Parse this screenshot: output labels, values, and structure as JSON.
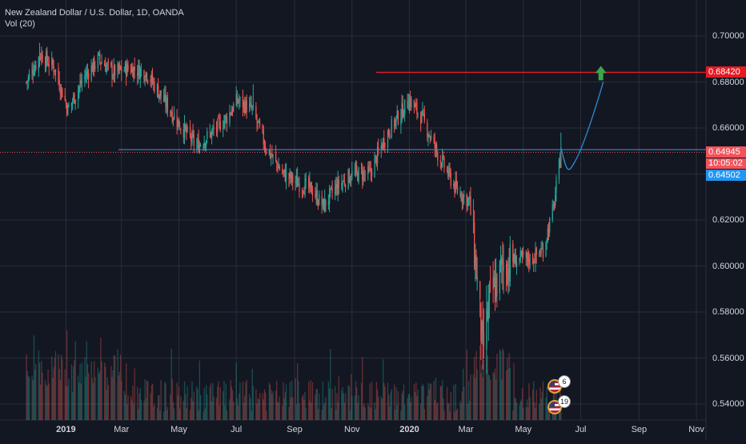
{
  "legend": {
    "symbol_title": "New Zealand Dollar / U.S. Dollar, 1D, OANDA",
    "volume_label": "Vol (20)"
  },
  "colors": {
    "background": "#131722",
    "grid": "#2a2e39",
    "up": "#26a69a",
    "down": "#ef5350",
    "resistance": "#e31b23",
    "support_line": "#4a90d9",
    "projection": "#2d8bd6",
    "arrow": "#3ea44b",
    "current_price": "#f0545b",
    "projection_tag": "#2196f3"
  },
  "y_axis": {
    "ticks": [
      "0.70000",
      "0.68000",
      "0.66000",
      "0.62000",
      "0.60000",
      "0.58000",
      "0.56000",
      "0.54000"
    ]
  },
  "x_axis": {
    "ticks": [
      {
        "label": "2019",
        "bold": true
      },
      {
        "label": "Mar",
        "bold": false
      },
      {
        "label": "May",
        "bold": false
      },
      {
        "label": "Jul",
        "bold": false
      },
      {
        "label": "Sep",
        "bold": false
      },
      {
        "label": "Nov",
        "bold": false
      },
      {
        "label": "2020",
        "bold": true
      },
      {
        "label": "Mar",
        "bold": false
      },
      {
        "label": "May",
        "bold": false
      },
      {
        "label": "Jul",
        "bold": false
      },
      {
        "label": "Sep",
        "bold": false
      },
      {
        "label": "Nov",
        "bold": false
      }
    ]
  },
  "price_tags": {
    "resistance": "0.68420",
    "current": "0.64945",
    "countdown": "10:05:02",
    "projection": "0.64502"
  },
  "events": {
    "count_top": "6",
    "count_bottom": "19"
  },
  "chart_data": {
    "type": "candlestick",
    "title": "New Zealand Dollar / U.S. Dollar, 1D, OANDA",
    "series_name": "NZDUSD",
    "indicator": "Vol (20)",
    "ylim": [
      0.532,
      0.705
    ],
    "y_unit": "price",
    "x_range": [
      "2018-11-20",
      "2020-11-30"
    ],
    "path_anchors": [
      [
        "2018-11-20",
        0.68
      ],
      [
        "2018-12-05",
        0.692
      ],
      [
        "2018-12-20",
        0.686
      ],
      [
        "2019-01-03",
        0.668
      ],
      [
        "2019-01-20",
        0.682
      ],
      [
        "2019-02-05",
        0.69
      ],
      [
        "2019-02-20",
        0.684
      ],
      [
        "2019-03-10",
        0.686
      ],
      [
        "2019-03-28",
        0.684
      ],
      [
        "2019-04-15",
        0.672
      ],
      [
        "2019-05-01",
        0.662
      ],
      [
        "2019-05-20",
        0.652
      ],
      [
        "2019-06-05",
        0.658
      ],
      [
        "2019-06-20",
        0.664
      ],
      [
        "2019-07-02",
        0.672
      ],
      [
        "2019-07-18",
        0.668
      ],
      [
        "2019-08-01",
        0.652
      ],
      [
        "2019-08-20",
        0.64
      ],
      [
        "2019-09-05",
        0.636
      ],
      [
        "2019-09-20",
        0.633
      ],
      [
        "2019-10-01",
        0.626
      ],
      [
        "2019-10-15",
        0.634
      ],
      [
        "2019-11-01",
        0.64
      ],
      [
        "2019-11-20",
        0.64
      ],
      [
        "2019-12-05",
        0.655
      ],
      [
        "2019-12-20",
        0.665
      ],
      [
        "2020-01-01",
        0.672
      ],
      [
        "2020-01-15",
        0.664
      ],
      [
        "2020-02-01",
        0.648
      ],
      [
        "2020-02-20",
        0.633
      ],
      [
        "2020-03-05",
        0.628
      ],
      [
        "2020-03-12",
        0.598
      ],
      [
        "2020-03-19",
        0.562
      ],
      [
        "2020-03-26",
        0.585
      ],
      [
        "2020-04-10",
        0.6
      ],
      [
        "2020-04-25",
        0.603
      ],
      [
        "2020-05-10",
        0.603
      ],
      [
        "2020-05-22",
        0.607
      ],
      [
        "2020-06-02",
        0.625
      ],
      [
        "2020-06-10",
        0.649
      ]
    ],
    "extremes": {
      "high_2018": 0.697,
      "high_jul_2019": 0.679,
      "high_dec_2019": 0.675,
      "low_mar_2020": 0.555,
      "high_jun_2020": 0.658
    },
    "annotations": {
      "resistance_level": 0.6842,
      "support_level": 0.6506,
      "current_price": 0.64945,
      "projection": {
        "from": [
          "2020-06-10",
          0.6515
        ],
        "dip": [
          "2020-06-25",
          0.6455
        ],
        "to": [
          "2020-07-25",
          0.6842
        ]
      }
    }
  }
}
